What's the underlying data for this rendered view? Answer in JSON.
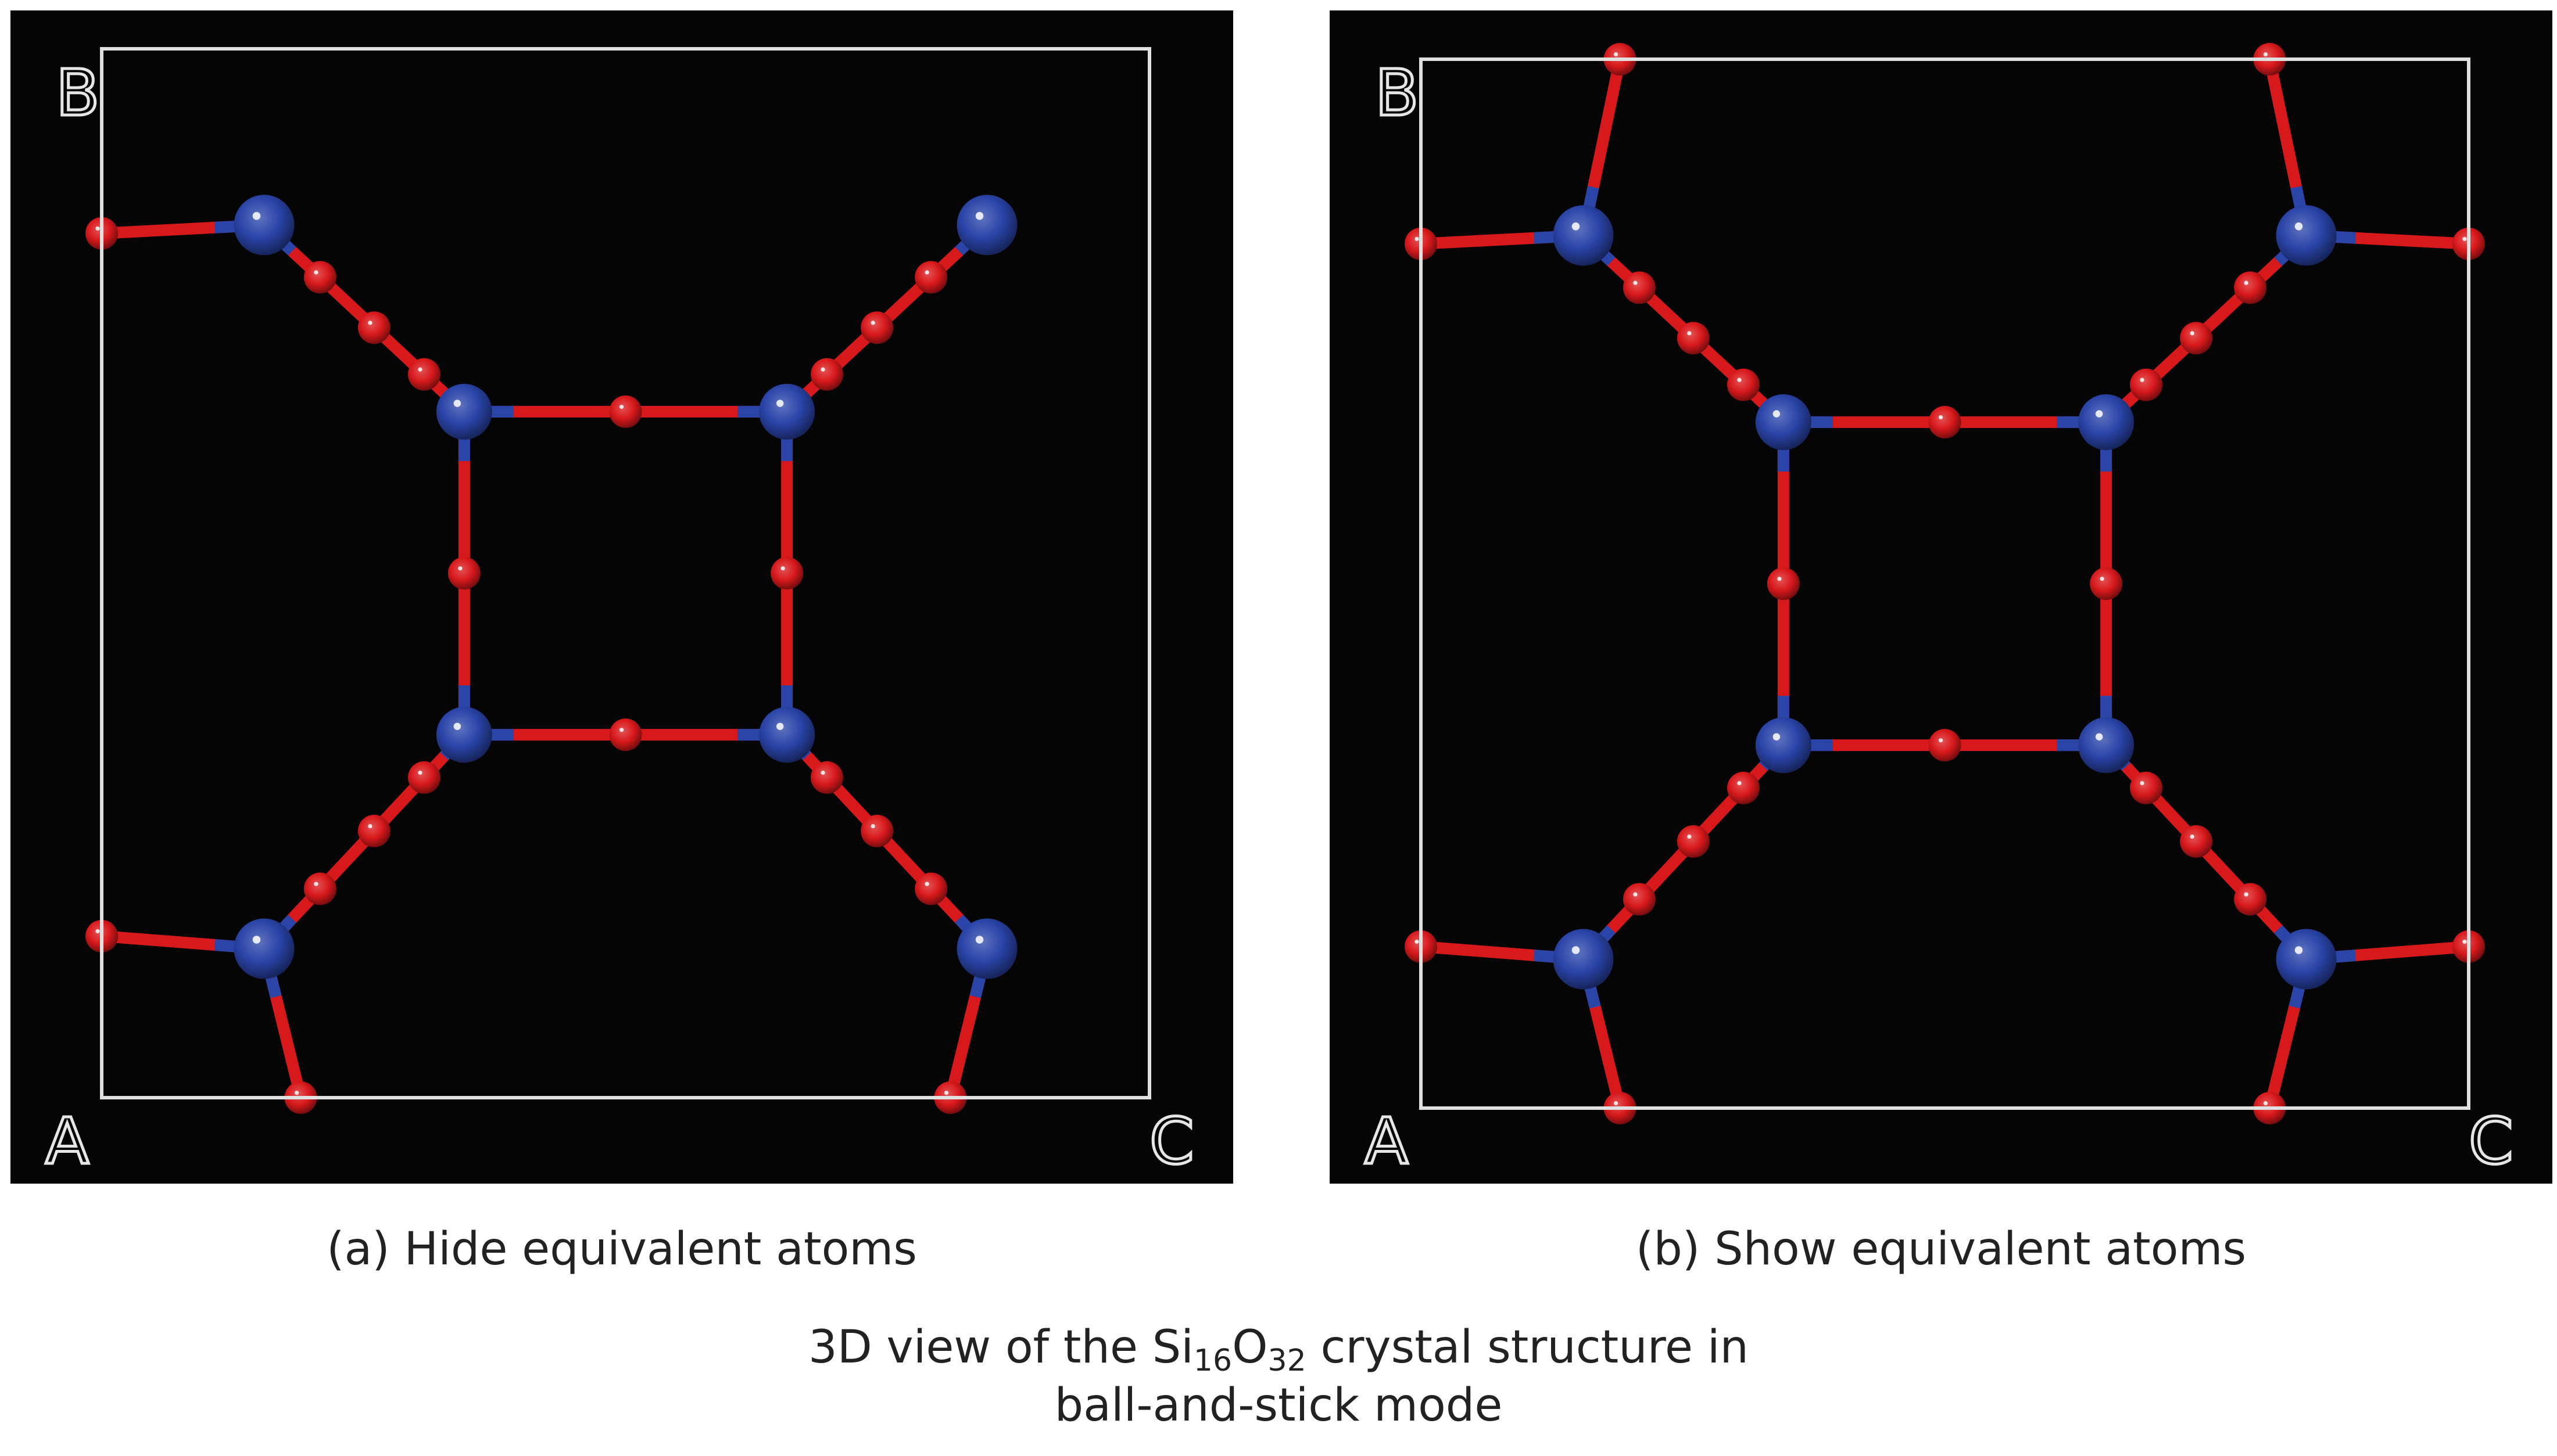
{
  "figure": {
    "caption_prefix": "3D view of the Si",
    "caption_sub1": "16",
    "caption_mid": "O",
    "caption_sub2": "32",
    "caption_suffix": " crystal structure in",
    "caption_line2": "ball-and-stick mode"
  },
  "panels": [
    {
      "id": "a",
      "subcaption": "(a) Hide equivalent atoms",
      "axis_labels": {
        "top_left": "B",
        "bottom_left": "A",
        "bottom_right": "C"
      }
    },
    {
      "id": "b",
      "subcaption": "(b) Show equivalent atoms",
      "axis_labels": {
        "top_left": "B",
        "bottom_left": "A",
        "bottom_right": "C"
      }
    }
  ],
  "colors": {
    "background": "#050505",
    "silicon_atom": "#2a44a8",
    "oxygen_atom": "#d8191c",
    "unit_cell": "#e0e0e0"
  }
}
